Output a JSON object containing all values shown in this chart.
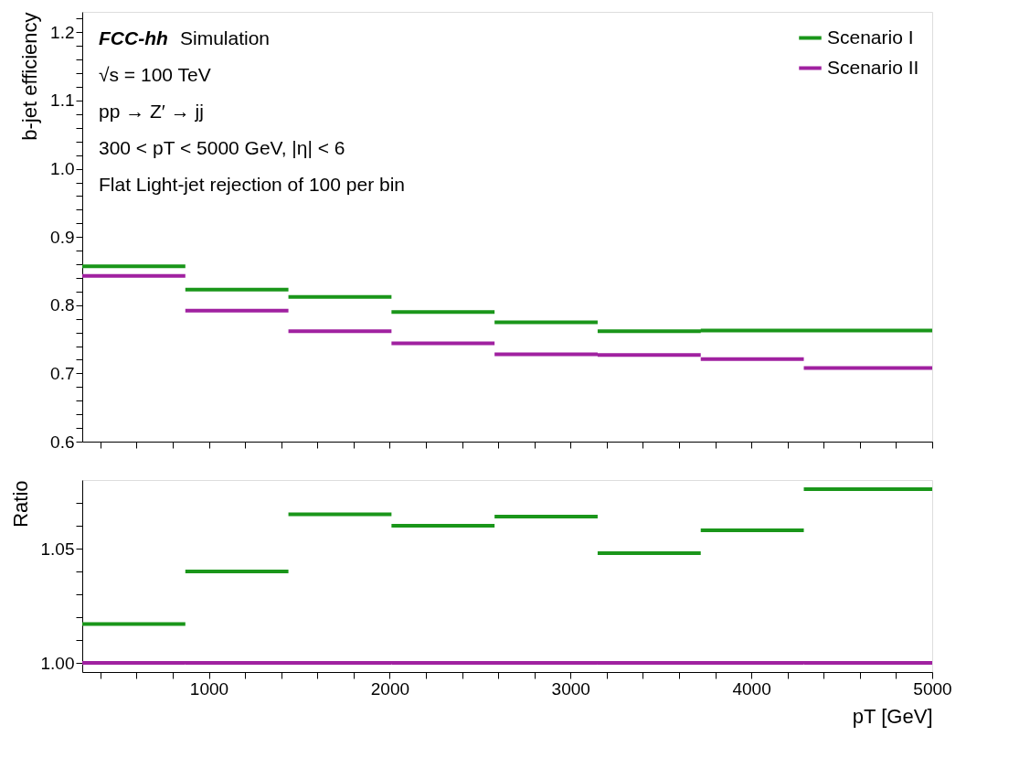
{
  "chart_data": [
    {
      "type": "line",
      "ylabel": "b-jet efficiency",
      "grid": false,
      "marker": "none",
      "series": [
        {
          "name": "Scenario I",
          "color": "#1a961a",
          "x": [
            300,
            870,
            870,
            1440,
            1440,
            2010,
            2010,
            2580,
            2580,
            3150,
            3150,
            3720,
            3720,
            4290,
            4290,
            5000
          ],
          "values": [
            0.857,
            0.857,
            0.823,
            0.823,
            0.812,
            0.812,
            0.79,
            0.79,
            0.775,
            0.775,
            0.762,
            0.762,
            0.763,
            0.763,
            0.763,
            0.763
          ]
        },
        {
          "name": "Scenario II",
          "color": "#a021a0",
          "x": [
            300,
            870,
            870,
            1440,
            1440,
            2010,
            2010,
            2580,
            2580,
            3150,
            3150,
            3720,
            3720,
            4290,
            4290,
            5000
          ],
          "values": [
            0.843,
            0.843,
            0.792,
            0.792,
            0.762,
            0.762,
            0.744,
            0.744,
            0.728,
            0.728,
            0.727,
            0.727,
            0.721,
            0.721,
            0.708,
            0.708
          ]
        }
      ],
      "xlim": [
        300,
        5000
      ],
      "ylim": [
        0.6,
        1.23
      ],
      "xticks": [
        {
          "value": 400,
          "label": null
        },
        {
          "value": 600,
          "label": null
        },
        {
          "value": 800,
          "label": null
        },
        1000,
        {
          "value": 1200,
          "label": null
        },
        {
          "value": 1400,
          "label": null
        },
        {
          "value": 1600,
          "label": null
        },
        {
          "value": 1800,
          "label": null
        },
        2000,
        {
          "value": 2200,
          "label": null
        },
        {
          "value": 2400,
          "label": null
        },
        {
          "value": 2600,
          "label": null
        },
        {
          "value": 2800,
          "label": null
        },
        3000,
        {
          "value": 3200,
          "label": null
        },
        {
          "value": 3400,
          "label": null
        },
        {
          "value": 3600,
          "label": null
        },
        {
          "value": 3800,
          "label": null
        },
        4000,
        {
          "value": 4200,
          "label": null
        },
        {
          "value": 4400,
          "label": null
        },
        {
          "value": 4600,
          "label": null
        },
        {
          "value": 4800,
          "label": null
        },
        5000
      ],
      "yticks": [
        0.6,
        {
          "value": 0.62,
          "label": null
        },
        {
          "value": 0.64,
          "label": null
        },
        {
          "value": 0.66,
          "label": null
        },
        {
          "value": 0.68,
          "label": null
        },
        0.7,
        {
          "value": 0.72,
          "label": null
        },
        {
          "value": 0.74,
          "label": null
        },
        {
          "value": 0.76,
          "label": null
        },
        {
          "value": 0.78,
          "label": null
        },
        0.8,
        {
          "value": 0.82,
          "label": null
        },
        {
          "value": 0.84,
          "label": null
        },
        {
          "value": 0.86,
          "label": null
        },
        {
          "value": 0.88,
          "label": null
        },
        0.9,
        {
          "value": 0.92,
          "label": null
        },
        {
          "value": 0.94,
          "label": null
        },
        {
          "value": 0.96,
          "label": null
        },
        {
          "value": 0.98,
          "label": null
        },
        {
          "value": 1.0,
          "label": "1.0"
        },
        {
          "value": 1.02,
          "label": null
        },
        {
          "value": 1.04,
          "label": null
        },
        {
          "value": 1.06,
          "label": null
        },
        {
          "value": 1.08,
          "label": null
        },
        1.1,
        {
          "value": 1.12,
          "label": null
        },
        {
          "value": 1.14,
          "label": null
        },
        {
          "value": 1.16,
          "label": null
        },
        {
          "value": 1.18,
          "label": null
        },
        1.2,
        {
          "value": 1.22,
          "label": null
        }
      ],
      "tick_labels": "y",
      "legend": "top right",
      "annotations": [
        "FCC-hh",
        "Simulation",
        "√s = 100 TeV",
        "pp → Z′ → jj",
        "300 < pT < 5000 GeV, |η| < 6",
        "Flat Light-jet rejection of 100 per bin"
      ]
    },
    {
      "type": "line",
      "xlabel": "pT [GeV]",
      "ylabel": "Ratio",
      "grid": false,
      "marker": "none",
      "series": [
        {
          "color": "#1a961a",
          "x": [
            300,
            870,
            870,
            1440,
            1440,
            2010,
            2010,
            2580,
            2580,
            3150,
            3150,
            3720,
            3720,
            4290,
            4290,
            5000
          ],
          "values": [
            1.017,
            1.017,
            1.04,
            1.04,
            1.065,
            1.065,
            1.06,
            1.06,
            1.064,
            1.064,
            1.048,
            1.048,
            1.058,
            1.058,
            1.076,
            1.076
          ]
        },
        {
          "color": "#a021a0",
          "x": [
            300,
            870,
            870,
            1440,
            1440,
            2010,
            2010,
            2580,
            2580,
            3150,
            3150,
            3720,
            3720,
            4290,
            4290,
            5000
          ],
          "values": [
            1.0,
            1.0,
            1.0,
            1.0,
            1.0,
            1.0,
            1.0,
            1.0,
            1.0,
            1.0,
            1.0,
            1.0,
            1.0,
            1.0,
            1.0,
            1.0
          ]
        }
      ],
      "xlim": [
        300,
        5000
      ],
      "ylim": [
        0.996,
        1.08
      ],
      "xticks": [
        {
          "value": 400,
          "label": null
        },
        {
          "value": 600,
          "label": null
        },
        {
          "value": 800,
          "label": null
        },
        1000,
        {
          "value": 1200,
          "label": null
        },
        {
          "value": 1400,
          "label": null
        },
        {
          "value": 1600,
          "label": null
        },
        {
          "value": 1800,
          "label": null
        },
        2000,
        {
          "value": 2200,
          "label": null
        },
        {
          "value": 2400,
          "label": null
        },
        {
          "value": 2600,
          "label": null
        },
        {
          "value": 2800,
          "label": null
        },
        3000,
        {
          "value": 3200,
          "label": null
        },
        {
          "value": 3400,
          "label": null
        },
        {
          "value": 3600,
          "label": null
        },
        {
          "value": 3800,
          "label": null
        },
        4000,
        {
          "value": 4200,
          "label": null
        },
        {
          "value": 4400,
          "label": null
        },
        {
          "value": 4600,
          "label": null
        },
        {
          "value": 4800,
          "label": null
        },
        5000
      ],
      "yticks": [
        {
          "value": 1.0,
          "label": "1.00"
        },
        {
          "value": 1.01,
          "label": null
        },
        {
          "value": 1.02,
          "label": null
        },
        {
          "value": 1.03,
          "label": null
        },
        {
          "value": 1.04,
          "label": null
        },
        1.05,
        {
          "value": 1.06,
          "label": null
        },
        {
          "value": 1.07,
          "label": null
        }
      ]
    }
  ]
}
